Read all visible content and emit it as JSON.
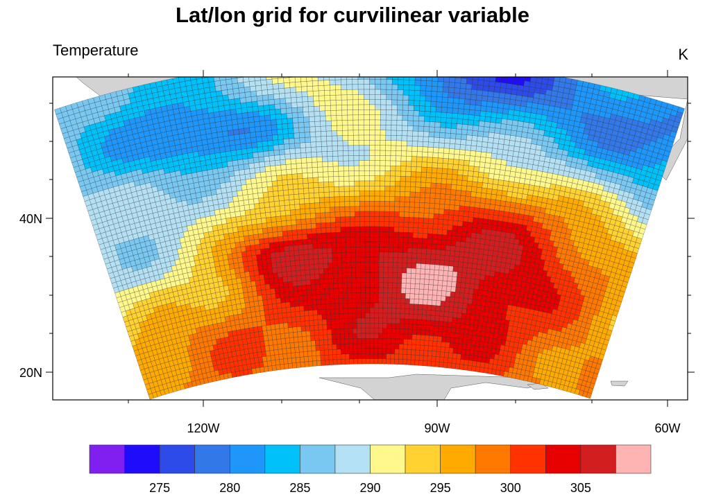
{
  "title": "Lat/lon grid for curvilinear variable",
  "left_string": "Temperature",
  "right_string": "K",
  "chart_data": {
    "type": "heatmap",
    "projection": "Lambert conformal, curvilinear grid with cell outlines",
    "lat_ticks": [
      "20N",
      "40N"
    ],
    "lon_ticks": [
      "120W",
      "90W",
      "60W"
    ],
    "colorbar": {
      "levels": [
        272.5,
        275,
        277.5,
        280,
        282.5,
        285,
        287.5,
        290,
        292.5,
        295,
        297.5,
        300,
        302.5,
        305,
        307.5
      ],
      "labels": [
        "275",
        "280",
        "285",
        "290",
        "295",
        "300",
        "305"
      ],
      "colors": [
        "#8020f0",
        "#1e0cfa",
        "#2d4be8",
        "#3278e8",
        "#1e96fa",
        "#00c0fa",
        "#78c8f2",
        "#b4e0f4",
        "#fff88c",
        "#ffd232",
        "#ffaa00",
        "#ff7800",
        "#ff3200",
        "#e60000",
        "#d21e1e",
        "#ffb4b4"
      ]
    },
    "land_color": "#d3d3d3"
  }
}
